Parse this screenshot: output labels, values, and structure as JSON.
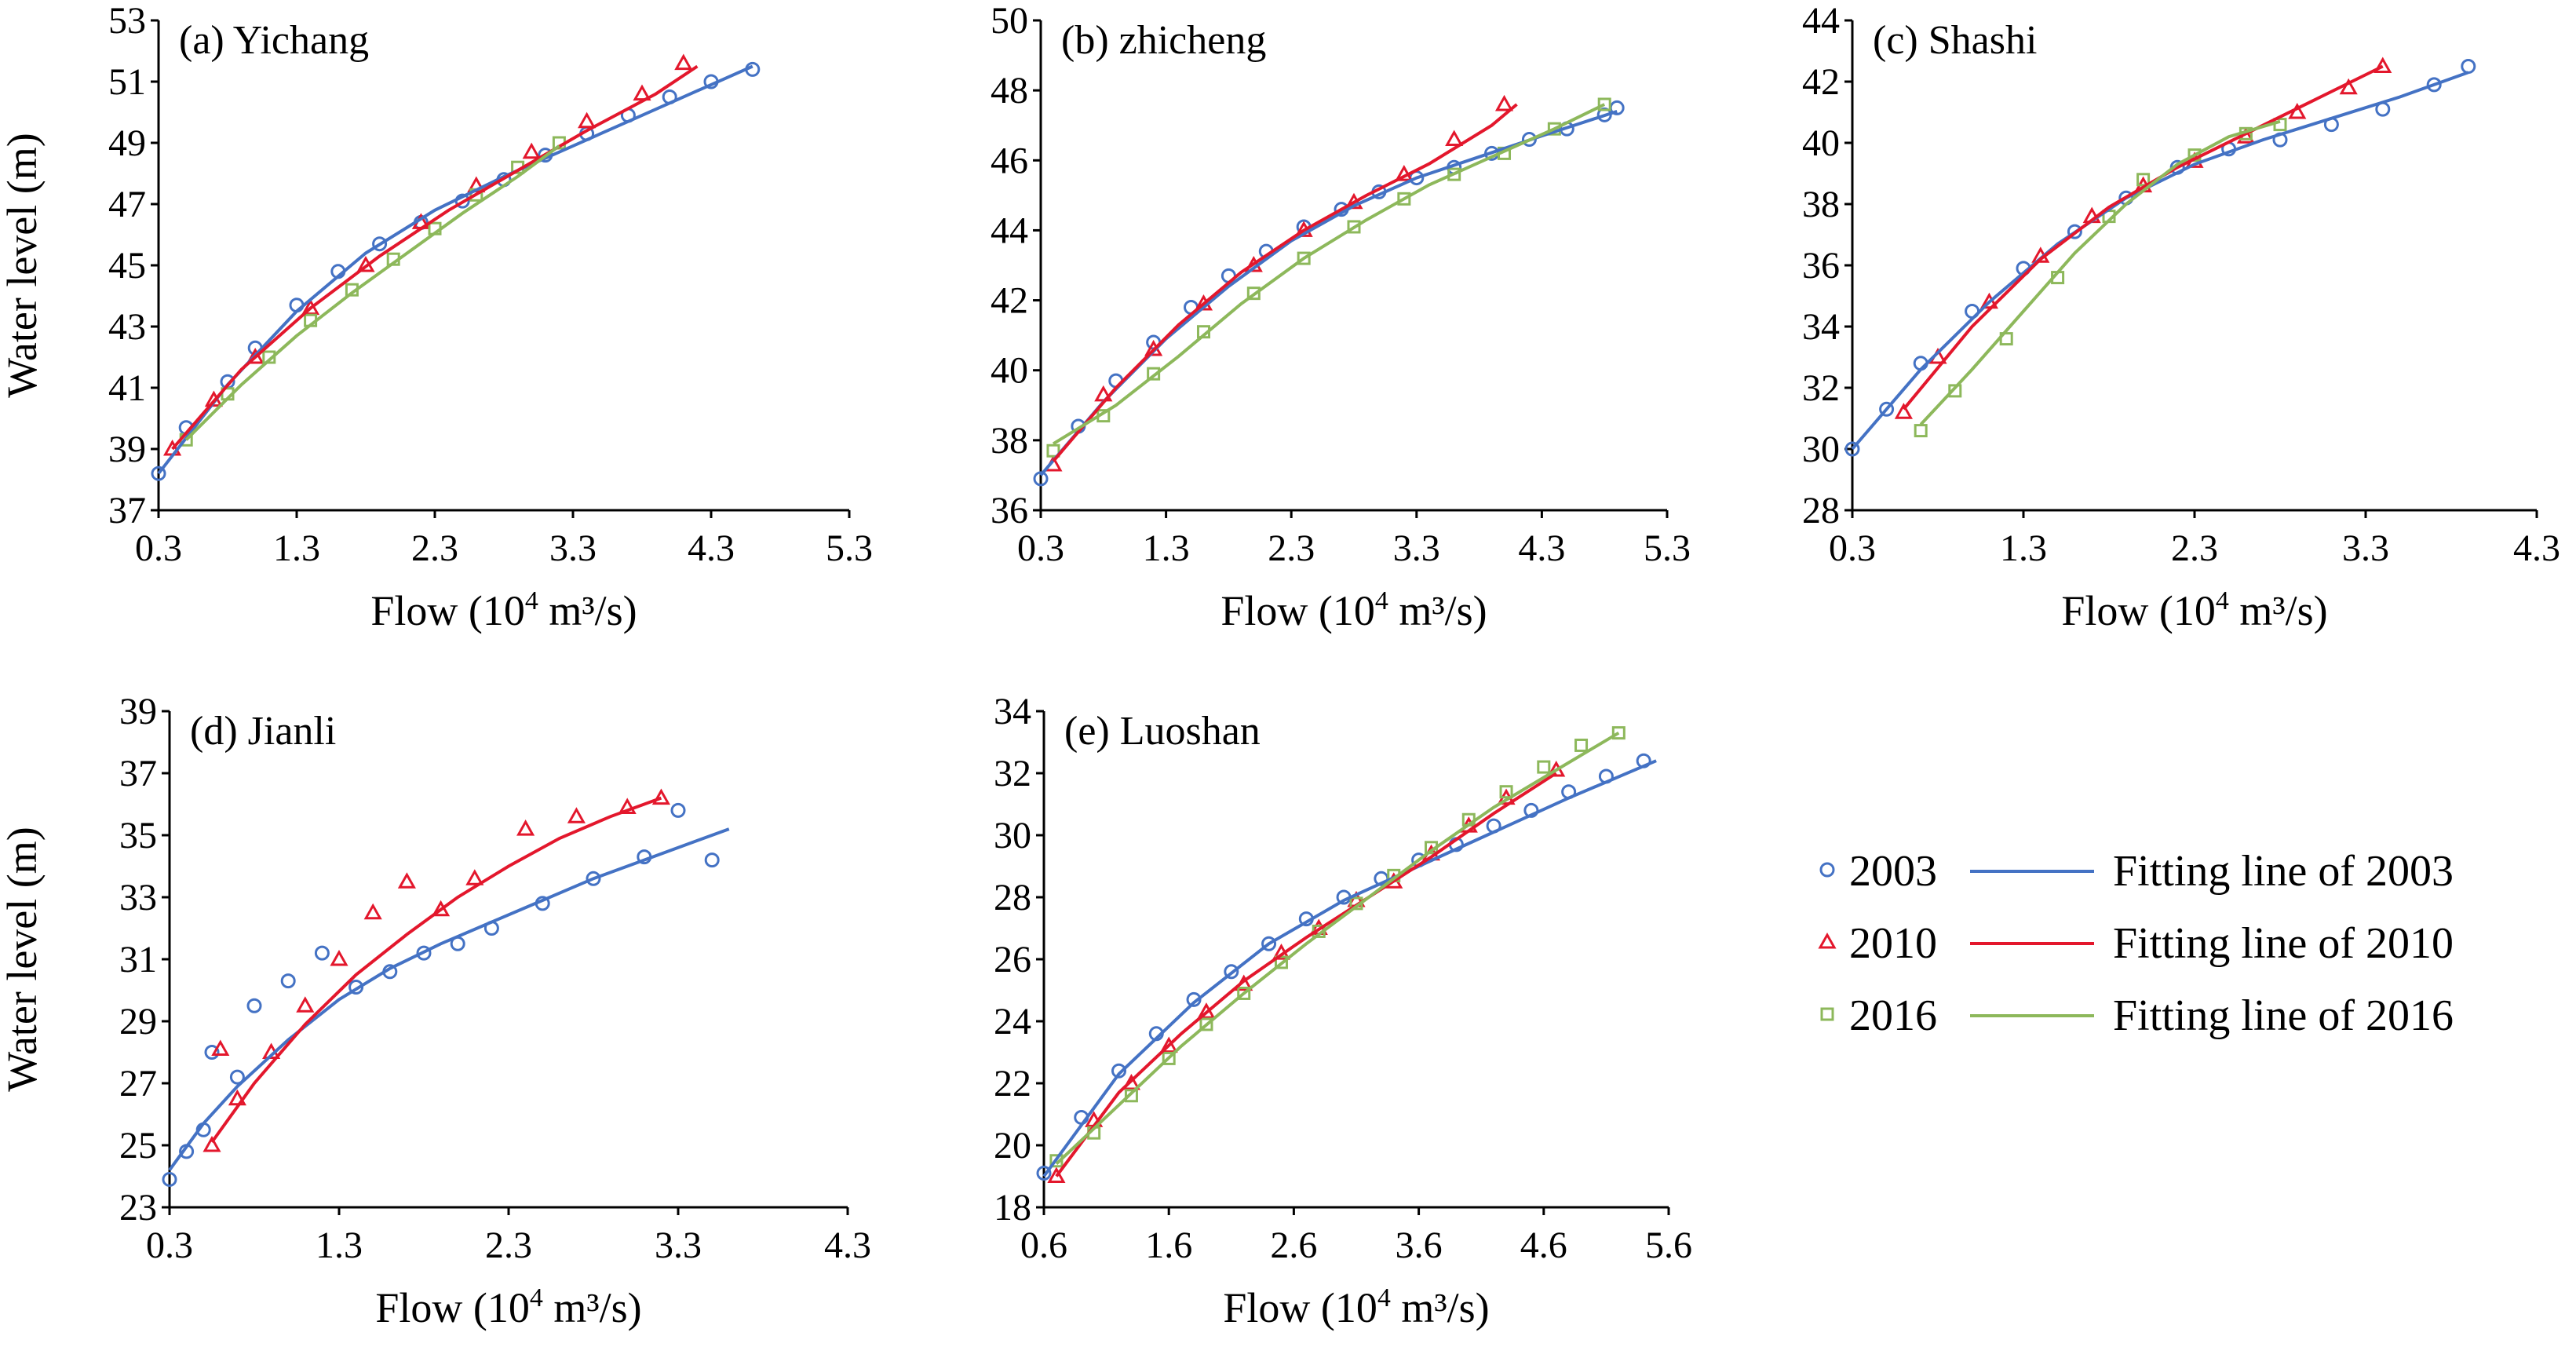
{
  "colors": {
    "2003": "#4472C4",
    "2010": "#E3172C",
    "2016": "#8DB85B"
  },
  "legend": {
    "markers": [
      "2003",
      "2010",
      "2016"
    ],
    "lines": [
      "Fitting line of 2003",
      "Fitting line of 2010",
      "Fitting line of 2016"
    ]
  },
  "chart_data": [
    {
      "type": "scatter",
      "title": "(a) Yichang",
      "xlabel": "Flow (10",
      "xlabel_sup": "4",
      "xlabel_tail": " m³/s)",
      "ylabel": "Water level (m)",
      "xlim": [
        0.3,
        5.3
      ],
      "ylim": [
        37,
        53
      ],
      "x_ticks": [
        "0.3",
        "1.3",
        "2.3",
        "3.3",
        "4.3",
        "5.3"
      ],
      "y_ticks": [
        "37",
        "39",
        "41",
        "43",
        "45",
        "47",
        "49",
        "51",
        "53"
      ],
      "series": [
        {
          "name": "2003",
          "marker": "circle",
          "x": [
            0.3,
            0.5,
            0.8,
            1.0,
            1.3,
            1.6,
            1.9,
            2.2,
            2.5,
            2.8,
            3.1,
            3.4,
            3.7,
            4.0,
            4.3,
            4.6
          ],
          "y": [
            38.2,
            39.7,
            41.2,
            42.3,
            43.7,
            44.8,
            45.7,
            46.4,
            47.1,
            47.8,
            48.6,
            49.3,
            49.9,
            50.5,
            51.0,
            51.4
          ]
        },
        {
          "name": "2010",
          "marker": "triangle",
          "x": [
            0.4,
            0.7,
            1.0,
            1.4,
            1.8,
            2.2,
            2.6,
            3.0,
            3.4,
            3.8,
            4.1
          ],
          "y": [
            39.0,
            40.6,
            42.0,
            43.6,
            45.0,
            46.4,
            47.6,
            48.7,
            49.7,
            50.6,
            51.6
          ]
        },
        {
          "name": "2016",
          "marker": "square",
          "x": [
            0.5,
            0.8,
            1.1,
            1.4,
            1.7,
            2.0,
            2.3,
            2.6,
            2.9,
            3.2
          ],
          "y": [
            39.3,
            40.8,
            42.0,
            43.2,
            44.2,
            45.2,
            46.2,
            47.3,
            48.2,
            49.0
          ]
        }
      ],
      "fits": [
        {
          "name": "2003",
          "x": [
            0.3,
            0.8,
            1.3,
            1.8,
            2.3,
            2.8,
            3.3,
            3.8,
            4.3,
            4.6
          ],
          "y": [
            38.2,
            41.1,
            43.5,
            45.4,
            46.8,
            47.9,
            48.9,
            49.9,
            50.9,
            51.5
          ]
        },
        {
          "name": "2010",
          "x": [
            0.4,
            0.9,
            1.4,
            1.9,
            2.4,
            2.9,
            3.4,
            3.9,
            4.2
          ],
          "y": [
            39.0,
            41.6,
            43.6,
            45.3,
            46.8,
            48.1,
            49.4,
            50.6,
            51.5
          ]
        },
        {
          "name": "2016",
          "x": [
            0.5,
            0.9,
            1.3,
            1.7,
            2.1,
            2.5,
            2.9,
            3.2
          ],
          "y": [
            39.3,
            41.1,
            42.7,
            44.1,
            45.4,
            46.7,
            47.9,
            48.9
          ]
        }
      ]
    },
    {
      "type": "scatter",
      "title": "(b) zhicheng",
      "xlabel": "Flow (10",
      "xlabel_sup": "4",
      "xlabel_tail": " m³/s)",
      "ylabel": "",
      "xlim": [
        0.3,
        5.3
      ],
      "ylim": [
        36,
        50
      ],
      "x_ticks": [
        "0.3",
        "1.3",
        "2.3",
        "3.3",
        "4.3",
        "5.3"
      ],
      "y_ticks": [
        "36",
        "38",
        "40",
        "42",
        "44",
        "46",
        "48",
        "50"
      ],
      "series": [
        {
          "name": "2003",
          "marker": "circle",
          "x": [
            0.3,
            0.6,
            0.9,
            1.2,
            1.5,
            1.8,
            2.1,
            2.4,
            2.7,
            3.0,
            3.3,
            3.6,
            3.9,
            4.2,
            4.5,
            4.8,
            4.9
          ],
          "y": [
            36.9,
            38.4,
            39.7,
            40.8,
            41.8,
            42.7,
            43.4,
            44.1,
            44.6,
            45.1,
            45.5,
            45.8,
            46.2,
            46.6,
            46.9,
            47.3,
            47.5
          ]
        },
        {
          "name": "2010",
          "marker": "triangle",
          "x": [
            0.4,
            0.8,
            1.2,
            1.6,
            2.0,
            2.4,
            2.8,
            3.2,
            3.6,
            4.0
          ],
          "y": [
            37.3,
            39.3,
            40.6,
            41.9,
            43.0,
            44.0,
            44.8,
            45.6,
            46.6,
            47.6
          ]
        },
        {
          "name": "2016",
          "marker": "square",
          "x": [
            0.4,
            0.8,
            1.2,
            1.6,
            2.0,
            2.4,
            2.8,
            3.2,
            3.6,
            4.0,
            4.4,
            4.8
          ],
          "y": [
            37.7,
            38.7,
            39.9,
            41.1,
            42.2,
            43.2,
            44.1,
            44.9,
            45.6,
            46.2,
            46.9,
            47.6
          ]
        }
      ],
      "fits": [
        {
          "name": "2003",
          "x": [
            0.3,
            0.8,
            1.3,
            1.8,
            2.3,
            2.8,
            3.3,
            3.8,
            4.3,
            4.9
          ],
          "y": [
            37.0,
            39.1,
            40.9,
            42.4,
            43.7,
            44.7,
            45.5,
            46.1,
            46.7,
            47.4
          ]
        },
        {
          "name": "2010",
          "x": [
            0.4,
            0.9,
            1.4,
            1.9,
            2.4,
            2.9,
            3.4,
            3.9,
            4.1
          ],
          "y": [
            37.4,
            39.5,
            41.3,
            42.8,
            44.0,
            45.0,
            45.9,
            47.0,
            47.6
          ]
        },
        {
          "name": "2016",
          "x": [
            0.4,
            0.9,
            1.4,
            1.9,
            2.4,
            2.9,
            3.4,
            3.9,
            4.4,
            4.8
          ],
          "y": [
            37.9,
            39.0,
            40.4,
            41.9,
            43.2,
            44.3,
            45.3,
            46.1,
            46.9,
            47.6
          ]
        }
      ]
    },
    {
      "type": "scatter",
      "title": "(c) Shashi",
      "xlabel": "Flow (10",
      "xlabel_sup": "4",
      "xlabel_tail": " m³/s)",
      "ylabel": "",
      "xlim": [
        0.3,
        4.3
      ],
      "ylim": [
        28,
        44
      ],
      "x_ticks": [
        "0.3",
        "1.3",
        "2.3",
        "3.3",
        "4.3"
      ],
      "y_ticks": [
        "28",
        "30",
        "32",
        "34",
        "36",
        "38",
        "40",
        "42",
        "44"
      ],
      "series": [
        {
          "name": "2003",
          "marker": "circle",
          "x": [
            0.3,
            0.5,
            0.7,
            1.0,
            1.3,
            1.6,
            1.9,
            2.2,
            2.5,
            2.8,
            3.1,
            3.4,
            3.7,
            3.9
          ],
          "y": [
            30.0,
            31.3,
            32.8,
            34.5,
            35.9,
            37.1,
            38.2,
            39.2,
            39.8,
            40.1,
            40.6,
            41.1,
            41.9,
            42.5
          ]
        },
        {
          "name": "2010",
          "marker": "triangle",
          "x": [
            0.6,
            0.8,
            1.1,
            1.4,
            1.7,
            2.0,
            2.3,
            2.6,
            2.9,
            3.2,
            3.4
          ],
          "y": [
            31.2,
            33.0,
            34.8,
            36.3,
            37.6,
            38.6,
            39.4,
            40.2,
            41.0,
            41.8,
            42.5
          ]
        },
        {
          "name": "2016",
          "marker": "square",
          "x": [
            0.7,
            0.9,
            1.2,
            1.5,
            1.8,
            2.0,
            2.3,
            2.6,
            2.8
          ],
          "y": [
            30.6,
            31.9,
            33.6,
            35.6,
            37.6,
            38.8,
            39.6,
            40.3,
            40.6
          ]
        }
      ],
      "fits": [
        {
          "name": "2003",
          "x": [
            0.3,
            0.7,
            1.1,
            1.5,
            1.9,
            2.3,
            2.7,
            3.1,
            3.5,
            3.9
          ],
          "y": [
            30.0,
            32.6,
            34.8,
            36.7,
            38.2,
            39.3,
            40.1,
            40.8,
            41.5,
            42.3
          ]
        },
        {
          "name": "2010",
          "x": [
            0.6,
            1.0,
            1.4,
            1.8,
            2.2,
            2.6,
            3.0,
            3.4
          ],
          "y": [
            31.3,
            34.0,
            36.2,
            37.9,
            39.2,
            40.3,
            41.4,
            42.5
          ]
        },
        {
          "name": "2016",
          "x": [
            0.7,
            1.0,
            1.3,
            1.6,
            1.9,
            2.2,
            2.5,
            2.8
          ],
          "y": [
            30.8,
            32.6,
            34.5,
            36.4,
            38.0,
            39.3,
            40.2,
            40.7
          ]
        }
      ]
    },
    {
      "type": "scatter",
      "title": "(d) Jianli",
      "xlabel": "Flow (10",
      "xlabel_sup": "4",
      "xlabel_tail": " m³/s)",
      "ylabel": "Water level (m)",
      "xlim": [
        0.3,
        4.3
      ],
      "ylim": [
        23,
        39
      ],
      "x_ticks": [
        "0.3",
        "1.3",
        "2.3",
        "3.3",
        "4.3"
      ],
      "y_ticks": [
        "23",
        "25",
        "27",
        "29",
        "31",
        "33",
        "35",
        "37",
        "39"
      ],
      "series": [
        {
          "name": "2003",
          "marker": "circle",
          "x": [
            0.3,
            0.4,
            0.5,
            0.55,
            0.7,
            0.8,
            1.0,
            1.2,
            1.4,
            1.6,
            1.8,
            2.0,
            2.2,
            2.5,
            2.8,
            3.1,
            3.3,
            3.5
          ],
          "y": [
            23.9,
            24.8,
            25.5,
            28.0,
            27.2,
            29.5,
            30.3,
            31.2,
            30.1,
            30.6,
            31.2,
            31.5,
            32.0,
            32.8,
            33.6,
            34.3,
            35.8,
            34.2
          ]
        },
        {
          "name": "2010",
          "marker": "triangle",
          "x": [
            0.55,
            0.6,
            0.7,
            0.9,
            1.1,
            1.3,
            1.5,
            1.7,
            1.9,
            2.1,
            2.4,
            2.7,
            3.0,
            3.2
          ],
          "y": [
            25.0,
            28.1,
            26.5,
            28.0,
            29.5,
            31.0,
            32.5,
            33.5,
            32.6,
            33.6,
            35.2,
            35.6,
            35.9,
            36.2
          ]
        }
      ],
      "fits": [
        {
          "name": "2003",
          "x": [
            0.3,
            0.5,
            0.7,
            1.0,
            1.3,
            1.6,
            1.9,
            2.2,
            2.5,
            2.8,
            3.1,
            3.6
          ],
          "y": [
            24.2,
            25.7,
            26.9,
            28.4,
            29.7,
            30.7,
            31.5,
            32.2,
            32.9,
            33.6,
            34.2,
            35.2
          ]
        },
        {
          "name": "2010",
          "x": [
            0.55,
            0.8,
            1.1,
            1.4,
            1.7,
            2.0,
            2.3,
            2.6,
            2.9,
            3.2
          ],
          "y": [
            25.1,
            27.0,
            28.9,
            30.5,
            31.8,
            33.0,
            34.0,
            34.9,
            35.6,
            36.2
          ]
        }
      ]
    },
    {
      "type": "scatter",
      "title": "(e) Luoshan",
      "xlabel": "Flow (10",
      "xlabel_sup": "4",
      "xlabel_tail": " m³/s)",
      "ylabel": "",
      "xlim": [
        0.6,
        5.6
      ],
      "ylim": [
        18,
        34
      ],
      "x_ticks": [
        "0.6",
        "1.6",
        "2.6",
        "3.6",
        "4.6",
        "5.6"
      ],
      "y_ticks": [
        "18",
        "20",
        "22",
        "24",
        "26",
        "28",
        "30",
        "32",
        "34"
      ],
      "series": [
        {
          "name": "2003",
          "marker": "circle",
          "x": [
            0.6,
            0.9,
            1.2,
            1.5,
            1.8,
            2.1,
            2.4,
            2.7,
            3.0,
            3.3,
            3.6,
            3.9,
            4.2,
            4.5,
            4.8,
            5.1,
            5.4
          ],
          "y": [
            19.1,
            20.9,
            22.4,
            23.6,
            24.7,
            25.6,
            26.5,
            27.3,
            28.0,
            28.6,
            29.2,
            29.7,
            30.3,
            30.8,
            31.4,
            31.9,
            32.4
          ]
        },
        {
          "name": "2010",
          "marker": "triangle",
          "x": [
            0.7,
            1.0,
            1.3,
            1.6,
            1.9,
            2.2,
            2.5,
            2.8,
            3.1,
            3.4,
            3.7,
            4.0,
            4.3,
            4.7
          ],
          "y": [
            19.0,
            20.8,
            22.0,
            23.2,
            24.3,
            25.2,
            26.2,
            27.0,
            27.9,
            28.5,
            29.4,
            30.3,
            31.2,
            32.1
          ]
        },
        {
          "name": "2016",
          "marker": "square",
          "x": [
            0.7,
            1.0,
            1.3,
            1.6,
            1.9,
            2.2,
            2.5,
            2.8,
            3.1,
            3.4,
            3.7,
            4.0,
            4.3,
            4.6,
            4.9,
            5.2
          ],
          "y": [
            19.5,
            20.4,
            21.6,
            22.8,
            23.9,
            24.9,
            25.9,
            26.9,
            27.8,
            28.7,
            29.6,
            30.5,
            31.4,
            32.2,
            32.9,
            33.3
          ]
        }
      ],
      "fits": [
        {
          "name": "2003",
          "x": [
            0.6,
            1.2,
            1.8,
            2.4,
            3.0,
            3.6,
            4.2,
            4.8,
            5.5
          ],
          "y": [
            19.0,
            22.3,
            24.6,
            26.5,
            27.9,
            29.0,
            30.1,
            31.2,
            32.4
          ]
        },
        {
          "name": "2010",
          "x": [
            0.7,
            1.2,
            1.7,
            2.2,
            2.7,
            3.2,
            3.7,
            4.2,
            4.7
          ],
          "y": [
            19.0,
            21.7,
            23.6,
            25.3,
            26.7,
            28.0,
            29.3,
            30.7,
            32.0
          ]
        },
        {
          "name": "2016",
          "x": [
            0.7,
            1.2,
            1.7,
            2.2,
            2.7,
            3.2,
            3.7,
            4.2,
            4.7,
            5.2
          ],
          "y": [
            19.4,
            21.3,
            23.2,
            24.9,
            26.5,
            28.0,
            29.5,
            30.9,
            32.1,
            33.3
          ]
        }
      ]
    }
  ]
}
